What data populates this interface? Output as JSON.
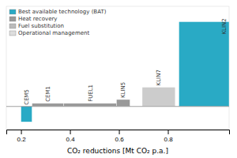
{
  "chart_data": {
    "type": "bar",
    "categories": [
      "CEM5",
      "CEM1",
      "FUEL1",
      "KLIN5",
      "KLIN7",
      "KLIN2"
    ],
    "x_start": [
      0.2,
      0.245,
      0.375,
      0.59,
      0.695,
      0.845
    ],
    "x_end": [
      0.245,
      0.375,
      0.59,
      0.645,
      0.83,
      1.05
    ],
    "values": [
      -0.2,
      0.04,
      0.04,
      0.09,
      0.25,
      1.1
    ],
    "colors": [
      "#29AAC5",
      "#999999",
      "#999999",
      "#999999",
      "#CCCCCC",
      "#29AAC5"
    ],
    "legend_items": [
      {
        "name": "Best available technology (BAT)",
        "color": "#29AAC5"
      },
      {
        "name": "Heat recovery",
        "color": "#999999"
      },
      {
        "name": "Fuel substitution",
        "color": "#BBBBBB"
      },
      {
        "name": "Operational management",
        "color": "#DDDDDD"
      }
    ],
    "legend": "upper left",
    "xlabel": "CO₂ reductions [Mt CO₂ p.a.]",
    "xlim": [
      0.14,
      1.05
    ],
    "ylim": [
      -0.3,
      1.3
    ],
    "xticks": [
      0.2,
      0.4,
      0.6,
      0.8
    ],
    "tick_labels": "x",
    "grid": false
  }
}
